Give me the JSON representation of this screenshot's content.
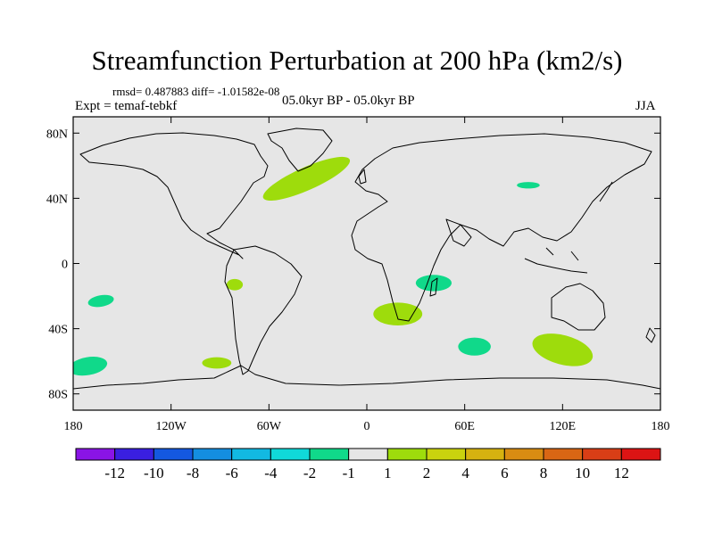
{
  "header": {
    "title": "Streamfunction Perturbation at 200 hPa (km2/s)",
    "stats": "rmsd= 0.487883 diff= -1.01582e-08",
    "experiment": "Expt = temaf-tebkf",
    "period": "05.0kyr BP - 05.0kyr BP",
    "season": "JJA"
  },
  "colors": {
    "ocean_background": "#e6e6e6",
    "coastline": "#000000",
    "negative_fill": "#10d98a",
    "positive_fill": "#9edc0c"
  },
  "chart_data": {
    "type": "contour map",
    "projection": "cylindrical equidistant",
    "xlim": [
      -180,
      180
    ],
    "ylim": [
      -90,
      90
    ],
    "x_ticks": [
      {
        "value": -180,
        "label": "180"
      },
      {
        "value": -120,
        "label": "120W"
      },
      {
        "value": -60,
        "label": "60W"
      },
      {
        "value": 0,
        "label": "0"
      },
      {
        "value": 60,
        "label": "60E"
      },
      {
        "value": 120,
        "label": "120E"
      },
      {
        "value": 180,
        "label": "180"
      }
    ],
    "y_ticks": [
      {
        "value": 80,
        "label": "80N"
      },
      {
        "value": 40,
        "label": "40N"
      },
      {
        "value": 0,
        "label": "0"
      },
      {
        "value": -40,
        "label": "40S"
      },
      {
        "value": -80,
        "label": "80S"
      }
    ],
    "anomaly_regions": [
      {
        "name": "north-atlantic",
        "sign": "positive",
        "center_lon": -37,
        "center_lat": 52,
        "width_deg": 58,
        "height_deg": 14,
        "rotation_deg": -24
      },
      {
        "name": "central-asia",
        "sign": "negative",
        "center_lon": 99,
        "center_lat": 48,
        "width_deg": 14,
        "height_deg": 4,
        "rotation_deg": 0
      },
      {
        "name": "east-africa",
        "sign": "negative",
        "center_lon": 41,
        "center_lat": -12,
        "width_deg": 22,
        "height_deg": 10,
        "rotation_deg": 0
      },
      {
        "name": "south-america-west",
        "sign": "positive",
        "center_lon": -81,
        "center_lat": -13,
        "width_deg": 10,
        "height_deg": 7,
        "rotation_deg": 0
      },
      {
        "name": "south-pacific-east",
        "sign": "negative",
        "center_lon": -163,
        "center_lat": -23,
        "width_deg": 16,
        "height_deg": 7,
        "rotation_deg": -10
      },
      {
        "name": "south-of-africa",
        "sign": "positive",
        "center_lon": 19,
        "center_lat": -31,
        "width_deg": 30,
        "height_deg": 14,
        "rotation_deg": 0
      },
      {
        "name": "south-indian",
        "sign": "negative",
        "center_lon": 66,
        "center_lat": -51,
        "width_deg": 20,
        "height_deg": 11,
        "rotation_deg": 0
      },
      {
        "name": "australia-south",
        "sign": "positive",
        "center_lon": 120,
        "center_lat": -53,
        "width_deg": 38,
        "height_deg": 18,
        "rotation_deg": 15
      },
      {
        "name": "south-pacific-far",
        "sign": "negative",
        "center_lon": -171,
        "center_lat": -63,
        "width_deg": 24,
        "height_deg": 11,
        "rotation_deg": -10
      },
      {
        "name": "south-pacific-mid",
        "sign": "positive",
        "center_lon": -92,
        "center_lat": -61,
        "width_deg": 18,
        "height_deg": 7,
        "rotation_deg": 0
      }
    ],
    "colorbar": {
      "colors": [
        "#8a14e6",
        "#3a1fe0",
        "#1458e0",
        "#148ee0",
        "#12b9e2",
        "#10d9d9",
        "#10d98a",
        "#e6e6e6",
        "#9edc0c",
        "#c9d20e",
        "#d6b210",
        "#d98c12",
        "#d96614",
        "#d93e16",
        "#dc1414"
      ],
      "labels": [
        "-12",
        "-10",
        "-8",
        "-6",
        "-4",
        "-2",
        "-1",
        "1",
        "2",
        "4",
        "6",
        "8",
        "10",
        "12"
      ]
    }
  }
}
